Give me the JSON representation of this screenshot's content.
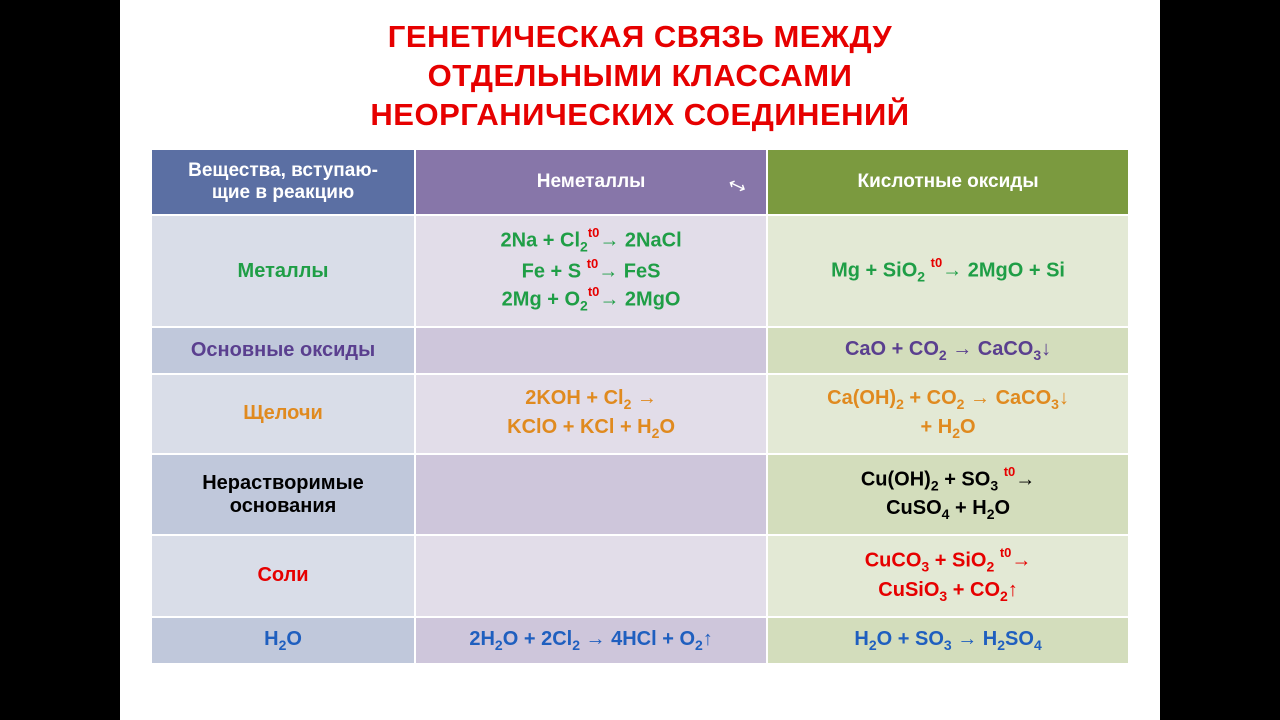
{
  "title_line1": "ГЕНЕТИЧЕСКАЯ СВЯЗЬ МЕЖДУ",
  "title_line2": "ОТДЕЛЬНЫМИ КЛАССАМИ",
  "title_line3": "НЕОРГАНИЧЕСКИХ СОЕДИНЕНИЙ",
  "headers": {
    "col0_l1": "Вещества, вступаю-",
    "col0_l2": "щие в реакцию",
    "col1": "Неметаллы",
    "col2": "Кислотные оксиды"
  },
  "rows": {
    "metals": {
      "label": "Металлы",
      "c1_l1a": "2Na + Cl",
      "c1_l1b": "→ 2NaCl",
      "c1_l2a": "Fe + S ",
      "c1_l2b": "→ FeS",
      "c1_l3a": "2Mg + O",
      "c1_l3b": "→ 2MgO",
      "c2a": "Mg + SiO",
      "c2b": "→ 2MgO + Si"
    },
    "basic_oxides": {
      "label": "Основные оксиды",
      "c2a": "CaO + CO",
      "c2b": " → CaCO",
      "c2c": "↓"
    },
    "alkali": {
      "label": "Щелочи",
      "c1_l1": "2KOH + Cl",
      "c1_l1b": " →",
      "c1_l2": "KClO + KCl + H",
      "c1_l2b": "O",
      "c2_l1a": "Ca(OH)",
      "c2_l1b": " + CO",
      "c2_l1c": " → CaCO",
      "c2_l1d": "↓",
      "c2_l2": "+ H",
      "c2_l2b": "O"
    },
    "insoluble": {
      "label_l1": "Нерастворимые",
      "label_l2": "основания",
      "c2_l1a": "Cu(OH)",
      "c2_l1b": " + SO",
      "c2_l1c": "→",
      "c2_l2a": "CuSO",
      "c2_l2b": " + H",
      "c2_l2c": "O"
    },
    "salts": {
      "label": "Соли",
      "c2_l1a": "CuCO",
      "c2_l1b": " + SiO",
      "c2_l1c": "→",
      "c2_l2a": "CuSiO",
      "c2_l2b": " + CO",
      "c2_l2c": "↑"
    },
    "water": {
      "label": "H",
      "label_b": "O",
      "c1a": "2H",
      "c1b": "O + 2Cl",
      "c1c": " → 4HCl + O",
      "c1d": "↑",
      "c2a": "H",
      "c2b": "O + SO",
      "c2c": " → H",
      "c2d": "SO"
    }
  },
  "t0_marker": "t0",
  "sub2": "2",
  "sub3": "3",
  "sub4": "4",
  "colors": {
    "title": "#e60000",
    "header_bg0": "#5b6fa3",
    "header_bg1": "#8776a9",
    "header_bg2": "#7b9a3f",
    "row_odd_c0": "#d9dde8",
    "row_odd_c1": "#e2dde9",
    "row_odd_c2": "#e3e9d5",
    "row_even_c0": "#c0c8db",
    "row_even_c1": "#cec6db",
    "row_even_c2": "#d3ddbc",
    "green": "#1f9e46",
    "purple": "#5a3f8f",
    "orange": "#e08a1f",
    "black": "#000000",
    "red": "#e60000",
    "blue": "#1f5fbf"
  },
  "layout": {
    "slide_width": 1040,
    "slide_height": 720,
    "title_fontsize": 31,
    "table_fontsize": 20,
    "col_widths_pct": [
      27,
      36,
      37
    ]
  }
}
